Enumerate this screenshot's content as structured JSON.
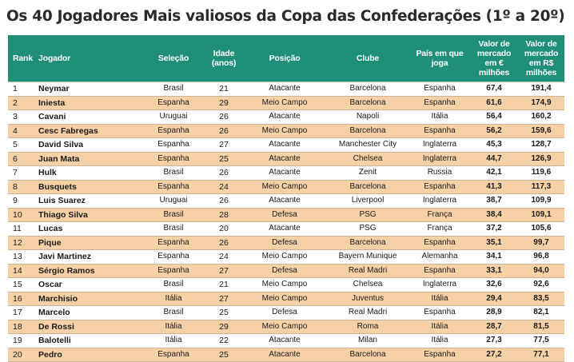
{
  "title": "Os 40 Jogadores Mais valiosos da Copa das Confederações (1º a 20º)",
  "table": {
    "headers": {
      "rank": "Rank",
      "player": "Jogador",
      "team": "Seleção",
      "age": "Idade (anos)",
      "position": "Posição",
      "club": "Clube",
      "country": "País em que joga",
      "eur": "Valor de mercado em € milhões",
      "brl": "Valor de mercado em R$ milhões"
    },
    "rows": [
      {
        "rank": "1",
        "player": "Neymar",
        "team": "Brasil",
        "age": "21",
        "position": "Atacante",
        "club": "Barcelona",
        "country": "Espanha",
        "eur": "67,4",
        "brl": "191,4"
      },
      {
        "rank": "2",
        "player": "Iniesta",
        "team": "Espanha",
        "age": "29",
        "position": "Meio Campo",
        "club": "Barcelona",
        "country": "Espanha",
        "eur": "61,6",
        "brl": "174,9"
      },
      {
        "rank": "3",
        "player": "Cavani",
        "team": "Uruguai",
        "age": "26",
        "position": "Atacante",
        "club": "Napoli",
        "country": "Itália",
        "eur": "56,4",
        "brl": "160,2"
      },
      {
        "rank": "4",
        "player": "Cesc Fabregas",
        "team": "Espanha",
        "age": "26",
        "position": "Meio Campo",
        "club": "Barcelona",
        "country": "Espanha",
        "eur": "56,2",
        "brl": "159,6"
      },
      {
        "rank": "5",
        "player": "David Silva",
        "team": "Espanha",
        "age": "27",
        "position": "Atacante",
        "club": "Manchester City",
        "country": "Inglaterra",
        "eur": "45,3",
        "brl": "128,7"
      },
      {
        "rank": "6",
        "player": "Juan Mata",
        "team": "Espanha",
        "age": "25",
        "position": "Atacante",
        "club": "Chelsea",
        "country": "Inglaterra",
        "eur": "44,7",
        "brl": "126,9"
      },
      {
        "rank": "7",
        "player": "Hulk",
        "team": "Brasil",
        "age": "26",
        "position": "Atacante",
        "club": "Zenit",
        "country": "Russia",
        "eur": "42,1",
        "brl": "119,6"
      },
      {
        "rank": "8",
        "player": "Busquets",
        "team": "Espanha",
        "age": "24",
        "position": "Meio Campo",
        "club": "Barcelona",
        "country": "Espanha",
        "eur": "41,3",
        "brl": "117,3"
      },
      {
        "rank": "9",
        "player": "Luis Suarez",
        "team": "Uruguai",
        "age": "26",
        "position": "Atacante",
        "club": "Liverpool",
        "country": "Inglaterra",
        "eur": "38,7",
        "brl": "109,9"
      },
      {
        "rank": "10",
        "player": "Thiago Silva",
        "team": "Brasil",
        "age": "28",
        "position": "Defesa",
        "club": "PSG",
        "country": "França",
        "eur": "38,4",
        "brl": "109,1"
      },
      {
        "rank": "11",
        "player": "Lucas",
        "team": "Brasil",
        "age": "20",
        "position": "Atacante",
        "club": "PSG",
        "country": "França",
        "eur": "37,2",
        "brl": "105,6"
      },
      {
        "rank": "12",
        "player": "Pique",
        "team": "Espanha",
        "age": "26",
        "position": "Defesa",
        "club": "Barcelona",
        "country": "Espanha",
        "eur": "35,1",
        "brl": "99,7"
      },
      {
        "rank": "13",
        "player": "Javi Martinez",
        "team": "Espanha",
        "age": "24",
        "position": "Meio Campo",
        "club": "Bayern Munique",
        "country": "Alemanha",
        "eur": "34,1",
        "brl": "96,8"
      },
      {
        "rank": "14",
        "player": "Sérgio Ramos",
        "team": "Espanha",
        "age": "27",
        "position": "Defesa",
        "club": "Real Madri",
        "country": "Espanha",
        "eur": "33,1",
        "brl": "94,0"
      },
      {
        "rank": "15",
        "player": "Oscar",
        "team": "Brasil",
        "age": "21",
        "position": "Meio Campo",
        "club": "Chelsea",
        "country": "Inglaterra",
        "eur": "32,6",
        "brl": "92,6"
      },
      {
        "rank": "16",
        "player": "Marchisio",
        "team": "Itália",
        "age": "27",
        "position": "Meio Campo",
        "club": "Juventus",
        "country": "Itália",
        "eur": "29,4",
        "brl": "83,5"
      },
      {
        "rank": "17",
        "player": "Marcelo",
        "team": "Brasil",
        "age": "25",
        "position": "Defesa",
        "club": "Real Madri",
        "country": "Espanha",
        "eur": "28,9",
        "brl": "82,1"
      },
      {
        "rank": "18",
        "player": "De Rossi",
        "team": "Itália",
        "age": "29",
        "position": "Meio Campo",
        "club": "Roma",
        "country": "Itália",
        "eur": "28,7",
        "brl": "81,5"
      },
      {
        "rank": "19",
        "player": "Balotelli",
        "team": "Itália",
        "age": "22",
        "position": "Atacante",
        "club": "Milan",
        "country": "Itália",
        "eur": "27,3",
        "brl": "77,5"
      },
      {
        "rank": "20",
        "player": "Pedro",
        "team": "Espanha",
        "age": "25",
        "position": "Atacante",
        "club": "Barcelona",
        "country": "Espanha",
        "eur": "27,2",
        "brl": "77,1"
      }
    ]
  }
}
